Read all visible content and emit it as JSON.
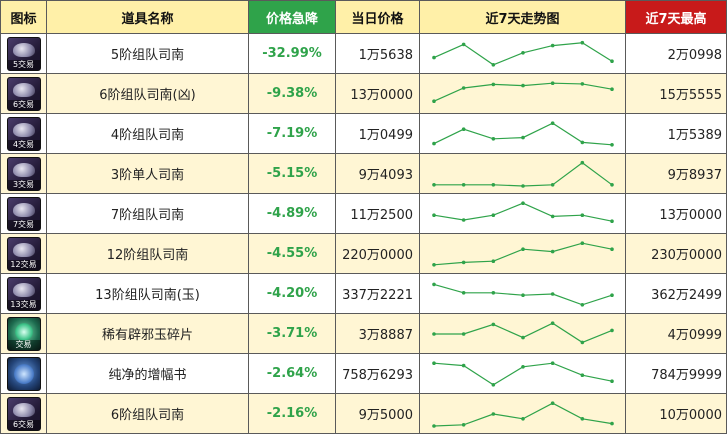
{
  "header": {
    "icon": "图标",
    "name": "道具名称",
    "drop": "价格急降",
    "price": "当日价格",
    "trend": "近7天走势图",
    "max": "近7天最高"
  },
  "colors": {
    "trend_line": "#2fa34a",
    "drop_text": "#2fa34a",
    "drop_header_bg": "#2fa34a",
    "max_header_bg": "#c81a1a",
    "header_bg": "#fff0a8",
    "alt_row_bg": "#fff6d4"
  },
  "rows": [
    {
      "icon": "locked-item-icon",
      "icon_label": "5交易",
      "name": "5阶组队司南",
      "drop": "-32.99%",
      "price": "1万5638",
      "max": "2万0998",
      "trend": [
        0.35,
        0.9,
        0.05,
        0.55,
        0.85,
        0.97,
        0.2
      ]
    },
    {
      "icon": "locked-item-icon",
      "icon_label": "6交易",
      "name": "6阶组队司南(凶)",
      "drop": "-9.38%",
      "price": "13万0000",
      "max": "15万5555",
      "trend": [
        0.2,
        0.75,
        0.9,
        0.85,
        0.95,
        0.92,
        0.7
      ]
    },
    {
      "icon": "locked-item-icon",
      "icon_label": "4交易",
      "name": "4阶组队司南",
      "drop": "-7.19%",
      "price": "1万0499",
      "max": "1万5389",
      "trend": [
        0.1,
        0.7,
        0.3,
        0.35,
        0.95,
        0.15,
        0.05
      ]
    },
    {
      "icon": "locked-item-icon",
      "icon_label": "3交易",
      "name": "3阶单人司南",
      "drop": "-5.15%",
      "price": "9万4093",
      "max": "9万8937",
      "trend": [
        0.05,
        0.05,
        0.05,
        0.0,
        0.05,
        0.97,
        0.05
      ]
    },
    {
      "icon": "locked-item-icon",
      "icon_label": "7交易",
      "name": "7阶组队司南",
      "drop": "-4.89%",
      "price": "11万2500",
      "max": "13万0000",
      "trend": [
        0.45,
        0.25,
        0.45,
        0.95,
        0.4,
        0.45,
        0.2
      ]
    },
    {
      "icon": "locked-item-icon",
      "icon_label": "12交易",
      "name": "12阶组队司南",
      "drop": "-4.55%",
      "price": "220万0000",
      "max": "230万0000",
      "trend": [
        0.05,
        0.15,
        0.2,
        0.7,
        0.6,
        0.95,
        0.7
      ]
    },
    {
      "icon": "locked-item-icon",
      "icon_label": "13交易",
      "name": "13阶组队司南(玉)",
      "drop": "-4.20%",
      "price": "337万2221",
      "max": "362万2499",
      "trend": [
        0.9,
        0.55,
        0.55,
        0.45,
        0.5,
        0.05,
        0.45
      ]
    },
    {
      "icon": "jade-shard-icon",
      "icon_label": "交易",
      "name": "稀有辟邪玉碎片",
      "drop": "-3.71%",
      "price": "3万8887",
      "max": "4万0999",
      "trend": [
        0.5,
        0.5,
        0.9,
        0.35,
        0.95,
        0.15,
        0.65
      ]
    },
    {
      "icon": "amplify-book-icon",
      "icon_label": "",
      "name": "纯净的增幅书",
      "drop": "-2.64%",
      "price": "758万6293",
      "max": "784万9999",
      "trend": [
        0.95,
        0.85,
        0.05,
        0.8,
        0.95,
        0.45,
        0.2
      ]
    },
    {
      "icon": "locked-item-icon",
      "icon_label": "6交易",
      "name": "6阶组队司南",
      "drop": "-2.16%",
      "price": "9万5000",
      "max": "10万0000",
      "trend": [
        0.0,
        0.05,
        0.5,
        0.3,
        0.95,
        0.3,
        0.1
      ]
    }
  ]
}
